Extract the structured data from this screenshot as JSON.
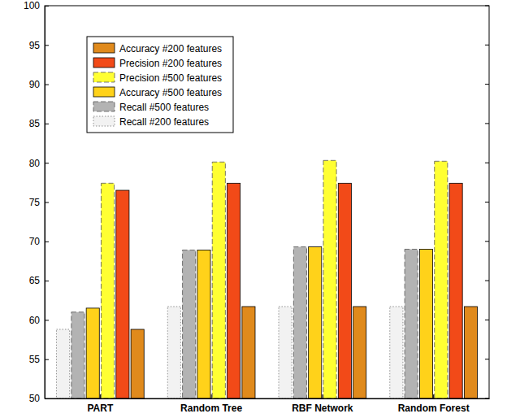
{
  "chart_data": {
    "type": "bar",
    "categories": [
      "PART",
      "Random Tree",
      "RBF Network",
      "Random Forest"
    ],
    "series": [
      {
        "name": "Accuracy #200 features",
        "color": "#e08a1c",
        "line_style": "solid",
        "values": [
          58.8,
          61.7,
          61.7,
          61.7
        ]
      },
      {
        "name": "Precision #200 features",
        "color": "#f24a18",
        "line_style": "solid",
        "values": [
          76.5,
          77.4,
          77.4,
          77.4
        ]
      },
      {
        "name": "Precision #500 features",
        "color": "#ffff33",
        "line_style": "dashed",
        "values": [
          77.4,
          80.1,
          80.3,
          80.2
        ]
      },
      {
        "name": "Accuracy #500 features",
        "color": "#ffd21a",
        "line_style": "solid",
        "values": [
          61.5,
          68.9,
          69.3,
          69.0
        ]
      },
      {
        "name": "Recall #500 features",
        "color": "#b3b3b3",
        "line_style": "dashed",
        "values": [
          61.0,
          68.9,
          69.3,
          69.0
        ]
      },
      {
        "name": "Recall #200 features",
        "color": "#f2f2f2",
        "line_style": "dotted",
        "values": [
          58.8,
          61.7,
          61.7,
          61.7
        ]
      }
    ],
    "ylim": [
      50,
      100
    ],
    "yticks": [
      50,
      55,
      60,
      65,
      70,
      75,
      80,
      85,
      90,
      95,
      100
    ],
    "grid": false,
    "legend": "upper left"
  }
}
